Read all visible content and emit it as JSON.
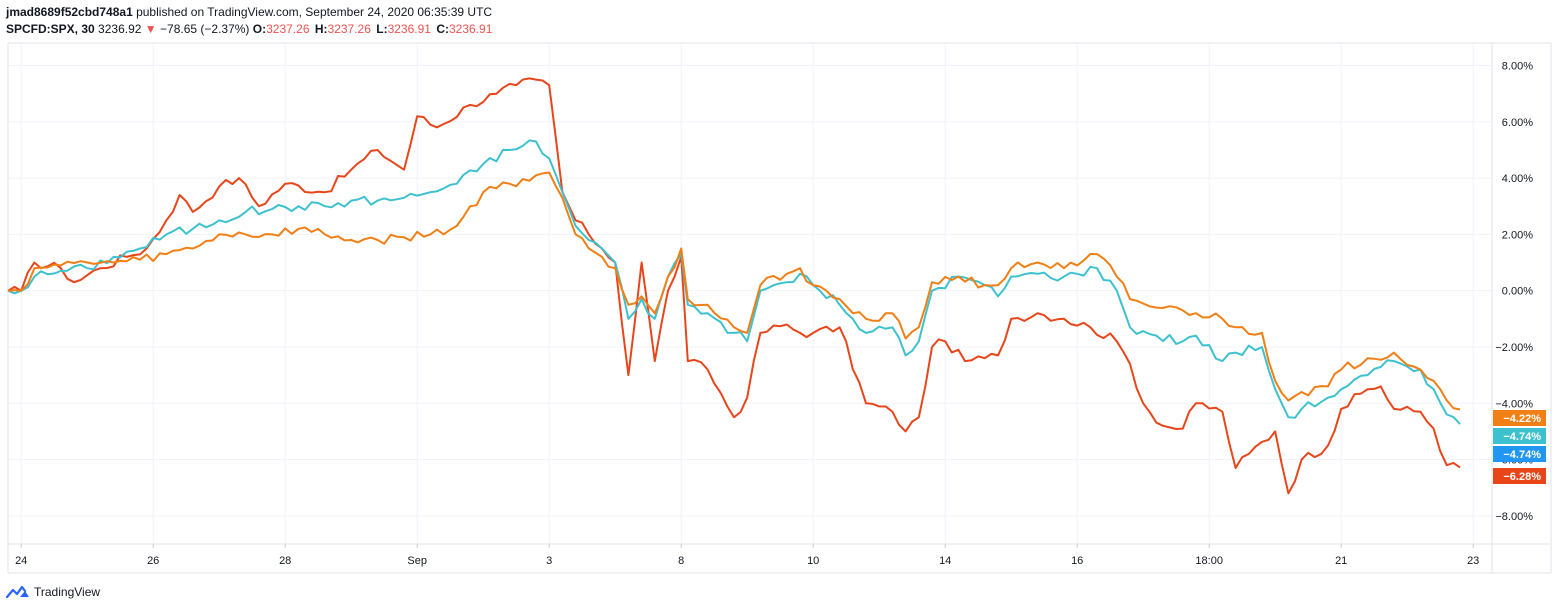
{
  "header": {
    "user": "jmad8689f52cbd748a1",
    "published": " published on TradingView.com, September 24, 2020 06:35:39 UTC",
    "symbol": "SPCFD:SPX, 30",
    "last": "3236.92",
    "arrow": "▼",
    "change": "−78.65 (−2.37%)",
    "o_label": "O:",
    "o_value": "3237.26",
    "h_label": "H:",
    "h_value": "3237.26",
    "l_label": "L:",
    "l_value": "3236.91",
    "c_label": "C:",
    "c_value": "3236.91"
  },
  "footer": {
    "brand": "TradingView"
  },
  "colors": {
    "red_series": "#e8461a",
    "orange_series": "#f07f16",
    "cyan_series": "#3ec1cf",
    "blue_badge": "#2196f3",
    "grid": "#f0f3fa",
    "axis_text": "#131722"
  },
  "chart_data": {
    "type": "line",
    "grid": true,
    "ylim": [
      -9.0,
      8.8
    ],
    "y_ticks": [
      "8.00%",
      "6.00%",
      "4.00%",
      "2.00%",
      "0.00%",
      "−2.00%",
      "−4.00%",
      "−6.00%",
      "−8.00%"
    ],
    "y_tick_values": [
      8,
      6,
      4,
      2,
      0,
      -2,
      -4,
      -6,
      -8
    ],
    "x_ticks": [
      "24",
      "26",
      "28",
      "Sep",
      "3",
      "8",
      "10",
      "14",
      "16",
      "18:00",
      "21",
      "23"
    ],
    "x_tick_bars": [
      2,
      22,
      42,
      62,
      82,
      102,
      122,
      142,
      162,
      182,
      202,
      222
    ],
    "bars": 222,
    "price_labels": [
      {
        "text": "−4.22%",
        "series": "orange"
      },
      {
        "text": "−4.74%",
        "series": "cyan"
      },
      {
        "text": "−4.74%",
        "series": "blue"
      },
      {
        "text": "−6.28%",
        "series": "red"
      }
    ],
    "series": [
      {
        "key": "red",
        "keypoints": [
          [
            0,
            0
          ],
          [
            2,
            0
          ],
          [
            4,
            1
          ],
          [
            8,
            0.8
          ],
          [
            10,
            0.3
          ],
          [
            14,
            0.8
          ],
          [
            18,
            1.2
          ],
          [
            21,
            1.5
          ],
          [
            24,
            2.5
          ],
          [
            26,
            3.4
          ],
          [
            28,
            2.8
          ],
          [
            32,
            3.7
          ],
          [
            35,
            4.0
          ],
          [
            38,
            3.0
          ],
          [
            42,
            3.8
          ],
          [
            48,
            3.5
          ],
          [
            52,
            4.3
          ],
          [
            56,
            5.0
          ],
          [
            60,
            4.3
          ],
          [
            62,
            6.2
          ],
          [
            65,
            5.8
          ],
          [
            70,
            6.6
          ],
          [
            74,
            7.0
          ],
          [
            77,
            7.3
          ],
          [
            80,
            7.5
          ],
          [
            82,
            7.3
          ],
          [
            84,
            3.5
          ],
          [
            86,
            2.5
          ],
          [
            88,
            2.0
          ],
          [
            90,
            1.5
          ],
          [
            92,
            1.0
          ],
          [
            94,
            -3.0
          ],
          [
            96,
            1.0
          ],
          [
            98,
            -2.5
          ],
          [
            100,
            0
          ],
          [
            102,
            1.2
          ],
          [
            103,
            -2.5
          ],
          [
            106,
            -2.8
          ],
          [
            110,
            -4.5
          ],
          [
            112,
            -3.8
          ],
          [
            114,
            -1.5
          ],
          [
            118,
            -1.2
          ],
          [
            120,
            -1.5
          ],
          [
            122,
            -1.5
          ],
          [
            126,
            -1.3
          ],
          [
            130,
            -4.0
          ],
          [
            134,
            -4.3
          ],
          [
            136,
            -5.0
          ],
          [
            138,
            -4.5
          ],
          [
            140,
            -2.0
          ],
          [
            142,
            -1.8
          ],
          [
            145,
            -2.5
          ],
          [
            148,
            -2.4
          ],
          [
            150,
            -2.3
          ],
          [
            152,
            -1.0
          ],
          [
            156,
            -0.8
          ],
          [
            160,
            -1.0
          ],
          [
            164,
            -1.3
          ],
          [
            168,
            -1.8
          ],
          [
            170,
            -2.6
          ],
          [
            172,
            -4.0
          ],
          [
            175,
            -4.8
          ],
          [
            178,
            -4.9
          ],
          [
            180,
            -4.0
          ],
          [
            184,
            -4.3
          ],
          [
            186,
            -6.3
          ],
          [
            188,
            -5.8
          ],
          [
            192,
            -5.0
          ],
          [
            194,
            -7.2
          ],
          [
            196,
            -6.0
          ],
          [
            200,
            -5.5
          ],
          [
            202,
            -4.2
          ],
          [
            206,
            -3.5
          ],
          [
            208,
            -3.4
          ],
          [
            210,
            -4.2
          ],
          [
            214,
            -4.3
          ],
          [
            216,
            -4.9
          ],
          [
            218,
            -6.2
          ],
          [
            220,
            -6.28
          ]
        ]
      },
      {
        "key": "cyan",
        "keypoints": [
          [
            0,
            0
          ],
          [
            2,
            0
          ],
          [
            4,
            0.5
          ],
          [
            8,
            0.7
          ],
          [
            12,
            0.8
          ],
          [
            16,
            1.2
          ],
          [
            20,
            1.5
          ],
          [
            24,
            2.0
          ],
          [
            28,
            2.2
          ],
          [
            32,
            2.5
          ],
          [
            36,
            2.8
          ],
          [
            40,
            2.9
          ],
          [
            44,
            3.0
          ],
          [
            48,
            3.0
          ],
          [
            52,
            3.2
          ],
          [
            56,
            3.2
          ],
          [
            60,
            3.3
          ],
          [
            64,
            3.5
          ],
          [
            68,
            3.8
          ],
          [
            72,
            4.5
          ],
          [
            76,
            5.0
          ],
          [
            80,
            5.3
          ],
          [
            82,
            4.7
          ],
          [
            84,
            3.5
          ],
          [
            86,
            2.3
          ],
          [
            88,
            1.8
          ],
          [
            90,
            1.5
          ],
          [
            92,
            1.0
          ],
          [
            94,
            -1.0
          ],
          [
            96,
            -0.3
          ],
          [
            98,
            -1.0
          ],
          [
            100,
            0.5
          ],
          [
            102,
            1.3
          ],
          [
            103,
            -0.5
          ],
          [
            106,
            -0.8
          ],
          [
            110,
            -1.5
          ],
          [
            112,
            -1.8
          ],
          [
            114,
            0
          ],
          [
            118,
            0.3
          ],
          [
            120,
            0.6
          ],
          [
            122,
            0.2
          ],
          [
            126,
            -0.5
          ],
          [
            128,
            -1.0
          ],
          [
            130,
            -1.5
          ],
          [
            134,
            -1.3
          ],
          [
            136,
            -2.3
          ],
          [
            138,
            -1.8
          ],
          [
            140,
            0
          ],
          [
            144,
            0.5
          ],
          [
            148,
            0.2
          ],
          [
            150,
            -0.2
          ],
          [
            152,
            0.5
          ],
          [
            156,
            0.6
          ],
          [
            160,
            0.5
          ],
          [
            162,
            0.6
          ],
          [
            165,
            0.8
          ],
          [
            168,
            0
          ],
          [
            170,
            -1.3
          ],
          [
            174,
            -1.6
          ],
          [
            178,
            -1.8
          ],
          [
            180,
            -1.6
          ],
          [
            184,
            -2.5
          ],
          [
            186,
            -2.2
          ],
          [
            190,
            -2.0
          ],
          [
            192,
            -3.5
          ],
          [
            194,
            -4.5
          ],
          [
            196,
            -4.2
          ],
          [
            200,
            -3.8
          ],
          [
            202,
            -3.5
          ],
          [
            206,
            -3.0
          ],
          [
            210,
            -2.5
          ],
          [
            214,
            -2.8
          ],
          [
            216,
            -3.5
          ],
          [
            218,
            -4.4
          ],
          [
            220,
            -4.74
          ]
        ]
      },
      {
        "key": "orange",
        "keypoints": [
          [
            0,
            0
          ],
          [
            2,
            0
          ],
          [
            4,
            0.8
          ],
          [
            8,
            0.9
          ],
          [
            12,
            1.0
          ],
          [
            16,
            1.0
          ],
          [
            20,
            1.1
          ],
          [
            24,
            1.3
          ],
          [
            28,
            1.5
          ],
          [
            32,
            2.0
          ],
          [
            36,
            2.0
          ],
          [
            40,
            2.0
          ],
          [
            44,
            2.2
          ],
          [
            48,
            2.0
          ],
          [
            52,
            1.8
          ],
          [
            56,
            1.8
          ],
          [
            60,
            1.9
          ],
          [
            64,
            2.0
          ],
          [
            68,
            2.3
          ],
          [
            72,
            3.5
          ],
          [
            76,
            3.8
          ],
          [
            80,
            4.1
          ],
          [
            82,
            4.2
          ],
          [
            84,
            3.3
          ],
          [
            86,
            2.0
          ],
          [
            88,
            1.5
          ],
          [
            90,
            1.2
          ],
          [
            92,
            0.8
          ],
          [
            94,
            -0.5
          ],
          [
            96,
            -0.2
          ],
          [
            98,
            -0.8
          ],
          [
            100,
            0.5
          ],
          [
            102,
            1.5
          ],
          [
            103,
            -0.3
          ],
          [
            106,
            -0.5
          ],
          [
            110,
            -1.3
          ],
          [
            112,
            -1.5
          ],
          [
            114,
            0.2
          ],
          [
            118,
            0.6
          ],
          [
            120,
            0.8
          ],
          [
            122,
            0.2
          ],
          [
            126,
            -0.3
          ],
          [
            128,
            -0.8
          ],
          [
            130,
            -1.0
          ],
          [
            134,
            -0.8
          ],
          [
            136,
            -1.7
          ],
          [
            138,
            -1.3
          ],
          [
            140,
            0.3
          ],
          [
            144,
            0.5
          ],
          [
            148,
            0.2
          ],
          [
            150,
            0.2
          ],
          [
            152,
            0.8
          ],
          [
            156,
            1.0
          ],
          [
            160,
            0.8
          ],
          [
            162,
            0.9
          ],
          [
            165,
            1.3
          ],
          [
            168,
            0.5
          ],
          [
            170,
            -0.3
          ],
          [
            174,
            -0.6
          ],
          [
            178,
            -0.7
          ],
          [
            180,
            -0.8
          ],
          [
            184,
            -1.0
          ],
          [
            186,
            -1.3
          ],
          [
            190,
            -1.5
          ],
          [
            192,
            -3.2
          ],
          [
            194,
            -3.9
          ],
          [
            196,
            -3.6
          ],
          [
            200,
            -3.4
          ],
          [
            202,
            -2.8
          ],
          [
            206,
            -2.4
          ],
          [
            210,
            -2.2
          ],
          [
            214,
            -2.8
          ],
          [
            216,
            -3.2
          ],
          [
            218,
            -3.9
          ],
          [
            220,
            -4.22
          ]
        ]
      }
    ]
  }
}
